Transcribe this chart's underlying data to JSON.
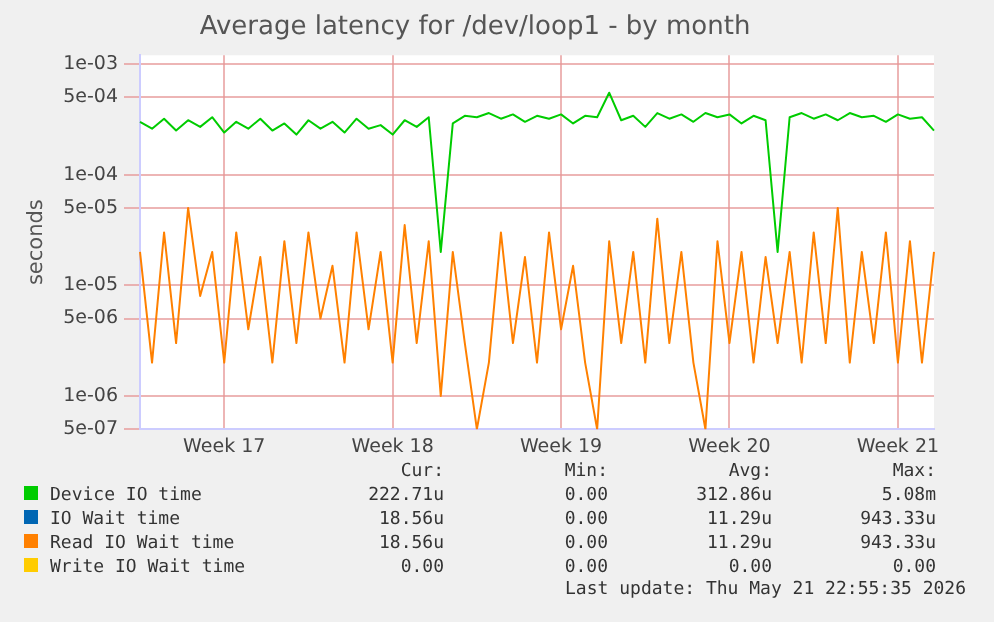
{
  "chart_data": {
    "type": "line",
    "title": "Average latency for /dev/loop1 - by month",
    "ylabel": "seconds",
    "categories": [
      null,
      null,
      null,
      null,
      null,
      null,
      null,
      "Week 17",
      null,
      null,
      null,
      null,
      null,
      null,
      null,
      null,
      null,
      null,
      null,
      null,
      null,
      "Week 18",
      null,
      null,
      null,
      null,
      null,
      null,
      null,
      null,
      null,
      null,
      null,
      null,
      null,
      "Week 19",
      null,
      null,
      null,
      null,
      null,
      null,
      null,
      null,
      null,
      null,
      null,
      null,
      null,
      "Week 20",
      null,
      null,
      null,
      null,
      null,
      null,
      null,
      null,
      null,
      null,
      null,
      null,
      null,
      "Week 21",
      null,
      null,
      null
    ],
    "series": [
      {
        "name": "Device IO time",
        "color": "#00cc00",
        "values": [
          0.0003,
          0.00026,
          0.00032,
          0.00025,
          0.00031,
          0.00027,
          0.00033,
          0.00024,
          0.0003,
          0.00026,
          0.00032,
          0.00025,
          0.00029,
          0.00023,
          0.00031,
          0.00026,
          0.0003,
          0.00024,
          0.00032,
          0.00026,
          0.00028,
          0.00023,
          0.00031,
          0.00027,
          0.00033,
          2e-05,
          0.00029,
          0.00034,
          0.00033,
          0.00036,
          0.00032,
          0.00035,
          0.0003,
          0.00034,
          0.00032,
          0.00035,
          0.00029,
          0.00034,
          0.00033,
          0.00055,
          0.00031,
          0.00034,
          0.00027,
          0.00036,
          0.00032,
          0.00035,
          0.0003,
          0.00036,
          0.00033,
          0.00035,
          0.00029,
          0.00034,
          0.00031,
          2e-05,
          0.00033,
          0.00036,
          0.00032,
          0.00035,
          0.00031,
          0.00036,
          0.00033,
          0.00034,
          0.0003,
          0.00035,
          0.00032,
          0.00033,
          0.00025
        ]
      },
      {
        "name": "IO Wait time",
        "color": "#0066b3",
        "values": [
          null,
          null,
          null,
          null,
          null,
          null,
          null,
          null,
          null,
          null,
          null,
          null,
          null,
          null,
          null,
          null,
          null,
          null,
          null,
          null,
          null,
          null,
          null,
          null,
          null,
          null,
          null,
          null,
          null,
          null,
          null,
          null,
          null,
          null,
          null,
          null,
          null,
          null,
          null,
          null,
          null,
          null,
          null,
          null,
          null,
          null,
          null,
          null,
          null,
          null,
          null,
          null,
          null,
          null,
          null,
          null,
          null,
          null,
          null,
          null,
          null,
          null,
          null,
          null,
          null,
          null,
          null
        ]
      },
      {
        "name": "Read IO Wait time",
        "color": "#ff8000",
        "values": [
          2e-05,
          2e-06,
          3e-05,
          3e-06,
          5e-05,
          8e-06,
          2e-05,
          2e-06,
          3e-05,
          4e-06,
          1.8e-05,
          2e-06,
          2.5e-05,
          3e-06,
          3e-05,
          5e-06,
          1.5e-05,
          2e-06,
          3e-05,
          4e-06,
          2e-05,
          2e-06,
          3.5e-05,
          3e-06,
          2.5e-05,
          1e-06,
          2e-05,
          3e-06,
          5e-07,
          2e-06,
          3e-05,
          3e-06,
          1.8e-05,
          2e-06,
          3e-05,
          4e-06,
          1.5e-05,
          2e-06,
          5e-07,
          2.5e-05,
          3e-06,
          2e-05,
          2e-06,
          4e-05,
          3e-06,
          2e-05,
          2e-06,
          5e-07,
          2.5e-05,
          3e-06,
          2e-05,
          2e-06,
          1.8e-05,
          3e-06,
          2e-05,
          2e-06,
          3e-05,
          3e-06,
          5e-05,
          2e-06,
          2e-05,
          3e-06,
          3e-05,
          2e-06,
          2.5e-05,
          2e-06,
          2e-05
        ]
      },
      {
        "name": "Write IO Wait time",
        "color": "#ffcc00",
        "values": [
          null,
          null,
          null,
          null,
          null,
          null,
          null,
          null,
          null,
          null,
          null,
          null,
          null,
          null,
          null,
          null,
          null,
          null,
          null,
          null,
          null,
          null,
          null,
          null,
          null,
          null,
          null,
          null,
          null,
          null,
          null,
          null,
          null,
          null,
          null,
          null,
          null,
          null,
          null,
          null,
          null,
          null,
          null,
          null,
          null,
          null,
          null,
          null,
          null,
          null,
          null,
          null,
          null,
          null,
          null,
          null,
          null,
          null,
          null,
          null,
          null,
          null,
          null,
          null,
          null,
          null,
          null
        ]
      }
    ],
    "ylim": [
      5e-07,
      0.0012
    ],
    "yticks": [
      {
        "value": 5e-07,
        "label": "5e-07"
      },
      {
        "value": 1e-06,
        "label": "1e-06"
      },
      {
        "value": 5e-06,
        "label": "5e-06"
      },
      {
        "value": 1e-05,
        "label": "1e-05"
      },
      {
        "value": 5e-05,
        "label": "5e-05"
      },
      {
        "value": 0.0001,
        "label": "1e-04"
      },
      {
        "value": 0.0005,
        "label": "5e-04"
      },
      {
        "value": 0.001,
        "label": "1e-03"
      }
    ],
    "log": "y",
    "grid": true,
    "marker": "none",
    "line_style": "solid",
    "legend": "bottom left",
    "annotations": [
      "Cur:",
      "Min:",
      "Avg:",
      "Max:",
      "222.71u",
      "0.00",
      "312.86u",
      "5.08m",
      "18.56u",
      "0.00",
      "11.29u",
      "943.33u",
      "18.56u",
      "0.00",
      "11.29u",
      "943.33u",
      "0.00",
      "0.00",
      "0.00",
      "0.00",
      "Last update: Thu May 21 22:55:35 2026"
    ]
  }
}
